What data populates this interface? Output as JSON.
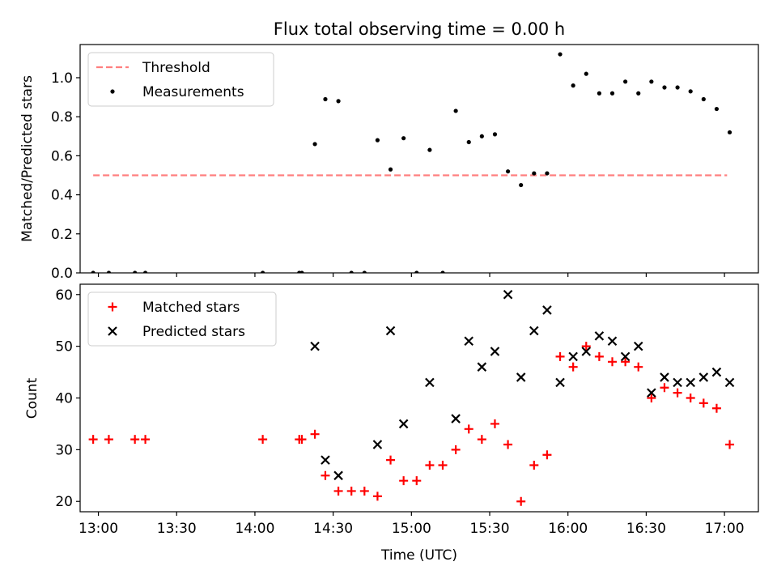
{
  "chart_data": [
    {
      "type": "scatter",
      "title": "Flux total observing time = 0.00 h",
      "xlabel": "",
      "ylabel": "Matched/Predicted stars",
      "xlim": [
        "12:53",
        "17:13"
      ],
      "ylim": [
        0,
        1.17
      ],
      "yticks": [
        "0.0",
        "0.2",
        "0.4",
        "0.6",
        "0.8",
        "1.0"
      ],
      "xticks": [
        "13:00",
        "13:30",
        "14:00",
        "14:30",
        "15:00",
        "15:30",
        "16:00",
        "16:30",
        "17:00"
      ],
      "grid": false,
      "legend": "top-left",
      "threshold": {
        "name": "Threshold",
        "value": 0.5,
        "x_range": [
          "12:58",
          "17:01"
        ],
        "color": "#ff7f7f",
        "style": "dashed"
      },
      "series": [
        {
          "name": "Measurements",
          "marker": "dot",
          "color": "#000000",
          "x": [
            "12:58",
            "13:04",
            "13:14",
            "13:18",
            "14:03",
            "14:17",
            "14:18",
            "14:23",
            "14:27",
            "14:32",
            "14:37",
            "14:42",
            "14:47",
            "14:52",
            "14:57",
            "15:02",
            "15:07",
            "15:12",
            "15:17",
            "15:22",
            "15:27",
            "15:32",
            "15:37",
            "15:42",
            "15:47",
            "15:52",
            "15:57",
            "16:02",
            "16:07",
            "16:12",
            "16:17",
            "16:22",
            "16:27",
            "16:32",
            "16:37",
            "16:42",
            "16:47",
            "16:52",
            "16:57",
            "17:02"
          ],
          "y": [
            0,
            0,
            0,
            0,
            0,
            0,
            0,
            0.66,
            0.89,
            0.88,
            0,
            0,
            0.68,
            0.53,
            0.69,
            0,
            0.63,
            0,
            0.83,
            0.67,
            0.7,
            0.71,
            0.52,
            0.45,
            0.51,
            0.51,
            1.12,
            0.96,
            1.02,
            0.92,
            0.92,
            0.98,
            0.92,
            0.98,
            0.95,
            0.95,
            0.93,
            0.89,
            0.84,
            0.72
          ]
        }
      ]
    },
    {
      "type": "scatter",
      "title": "",
      "xlabel": "Time (UTC)",
      "ylabel": "Count",
      "xlim": [
        "12:53",
        "17:13"
      ],
      "ylim": [
        18,
        62
      ],
      "yticks": [
        "20",
        "30",
        "40",
        "50",
        "60"
      ],
      "xticks": [
        "13:00",
        "13:30",
        "14:00",
        "14:30",
        "15:00",
        "15:30",
        "16:00",
        "16:30",
        "17:00"
      ],
      "grid": false,
      "legend": "top-left",
      "series": [
        {
          "name": "Matched stars",
          "marker": "plus",
          "color": "#ff0000",
          "x": [
            "12:58",
            "13:04",
            "13:14",
            "13:18",
            "14:03",
            "14:17",
            "14:18",
            "14:23",
            "14:27",
            "14:32",
            "14:37",
            "14:42",
            "14:47",
            "14:52",
            "14:57",
            "15:02",
            "15:07",
            "15:12",
            "15:17",
            "15:22",
            "15:27",
            "15:32",
            "15:37",
            "15:42",
            "15:47",
            "15:52",
            "15:57",
            "16:02",
            "16:07",
            "16:12",
            "16:17",
            "16:22",
            "16:27",
            "16:32",
            "16:37",
            "16:42",
            "16:47",
            "16:52",
            "16:57",
            "17:02"
          ],
          "y": [
            32,
            32,
            32,
            32,
            32,
            32,
            32,
            33,
            25,
            22,
            22,
            22,
            21,
            28,
            24,
            24,
            27,
            27,
            30,
            34,
            32,
            35,
            31,
            20,
            27,
            29,
            48,
            46,
            50,
            48,
            47,
            47,
            46,
            40,
            42,
            41,
            40,
            39,
            38,
            31
          ]
        },
        {
          "name": "Predicted stars",
          "marker": "x",
          "color": "#000000",
          "x": [
            "14:23",
            "14:27",
            "14:32",
            "14:47",
            "14:52",
            "14:57",
            "15:07",
            "15:17",
            "15:22",
            "15:27",
            "15:32",
            "15:37",
            "15:42",
            "15:47",
            "15:52",
            "15:57",
            "16:02",
            "16:07",
            "16:12",
            "16:17",
            "16:22",
            "16:27",
            "16:32",
            "16:37",
            "16:42",
            "16:47",
            "16:52",
            "16:57",
            "17:02"
          ],
          "y": [
            50,
            28,
            25,
            31,
            53,
            35,
            43,
            36,
            51,
            46,
            49,
            60,
            44,
            53,
            57,
            43,
            48,
            49,
            52,
            51,
            48,
            50,
            41,
            44,
            43,
            43,
            44,
            45,
            43
          ]
        }
      ]
    }
  ]
}
